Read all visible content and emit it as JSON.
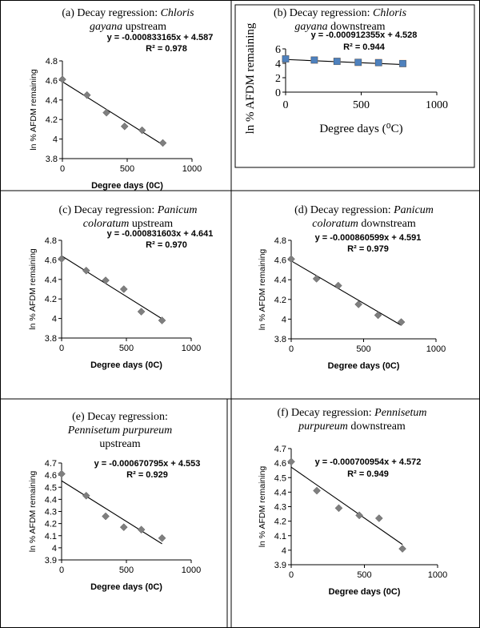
{
  "chart_data": [
    {
      "type": "scatter",
      "title_lines": [
        [
          "(a) Decay regression: ",
          "Chloris"
        ],
        [
          "gayana",
          " upstream"
        ]
      ],
      "title_style": "serif-14",
      "equation": "y = -0.000833165x + 4.587",
      "r2": "R² = 0.978",
      "xlabel": "Degree days (0C)",
      "ylabel": "ln % AFDM remaining",
      "xlim": [
        0,
        1000
      ],
      "ylim": [
        3.8,
        4.8
      ],
      "xticks": [
        0,
        500,
        1000
      ],
      "yticks": [
        "3.8",
        "4",
        "4.2",
        "4.4",
        "4.6",
        "4.8"
      ],
      "points": [
        [
          0,
          4.61
        ],
        [
          190,
          4.45
        ],
        [
          340,
          4.27
        ],
        [
          480,
          4.13
        ],
        [
          615,
          4.09
        ],
        [
          775,
          3.96
        ]
      ],
      "fit": {
        "slope": -0.000833165,
        "intercept": 4.587
      },
      "marker": "diamond",
      "marker_color": "#000000"
    },
    {
      "type": "scatter",
      "title_lines": [
        [
          "(b) Decay regression: ",
          "Chloris"
        ],
        [
          "gayana",
          " downstream"
        ]
      ],
      "title_style": "serif-14",
      "equation": "y = -0.000912355x + 4.528",
      "r2": "R² = 0.944",
      "xlabel": "Degree days (⁰C)",
      "ylabel": "ln % AFDM remaining",
      "xlim": [
        0,
        1000
      ],
      "ylim": [
        0,
        6
      ],
      "xticks": [
        0,
        500,
        1000
      ],
      "yticks": [
        "0",
        "2",
        "4",
        "6"
      ],
      "points": [
        [
          0,
          4.61
        ],
        [
          190,
          4.45
        ],
        [
          340,
          4.27
        ],
        [
          480,
          4.13
        ],
        [
          615,
          4.09
        ],
        [
          775,
          3.96
        ]
      ],
      "fit": {
        "slope": -0.000912355,
        "intercept": 4.528
      },
      "marker": "square",
      "marker_color": "#4f81bd",
      "marker_accent": "#f79646"
    },
    {
      "type": "scatter",
      "title_lines": [
        [
          "(c) Decay regression: ",
          "Panicum"
        ],
        [
          "coloratum",
          " upstream"
        ]
      ],
      "title_style": "serif-14",
      "equation": "y = -0.000831603x + 4.641",
      "r2": "R² = 0.970",
      "xlabel": "Degree days (0C)",
      "ylabel": "ln % AFDM remaining",
      "xlim": [
        0,
        1000
      ],
      "ylim": [
        3.8,
        4.8
      ],
      "xticks": [
        0,
        500,
        1000
      ],
      "yticks": [
        "3.8",
        "4",
        "4.2",
        "4.4",
        "4.6",
        "4.8"
      ],
      "points": [
        [
          0,
          4.61
        ],
        [
          190,
          4.49
        ],
        [
          340,
          4.39
        ],
        [
          480,
          4.3
        ],
        [
          615,
          4.07
        ],
        [
          775,
          3.98
        ]
      ],
      "fit": {
        "slope": -0.000831603,
        "intercept": 4.641
      },
      "marker": "diamond",
      "marker_color": "#000000"
    },
    {
      "type": "scatter",
      "title_lines": [
        [
          "(d) Decay regression: ",
          "Panicum"
        ],
        [
          "coloratum",
          " downstream"
        ]
      ],
      "title_style": "serif-14",
      "equation": "y = -0.000860599x + 4.591",
      "r2": "R² = 0.979",
      "xlabel": "Degree days (0C)",
      "ylabel": "ln % AFDM remaining",
      "xlim": [
        0,
        1000
      ],
      "ylim": [
        3.8,
        4.8
      ],
      "xticks": [
        0,
        500,
        1000
      ],
      "yticks": [
        "3.8",
        "4",
        "4.2",
        "4.4",
        "4.6",
        "4.8"
      ],
      "points": [
        [
          0,
          4.61
        ],
        [
          175,
          4.41
        ],
        [
          325,
          4.34
        ],
        [
          465,
          4.15
        ],
        [
          600,
          4.04
        ],
        [
          760,
          3.97
        ]
      ],
      "fit": {
        "slope": -0.000860599,
        "intercept": 4.591
      },
      "marker": "diamond",
      "marker_color": "#000000"
    },
    {
      "type": "scatter",
      "title_lines": [
        [
          "(e) Decay regression:"
        ],
        [
          "Pennisetum purpureum"
        ],
        [
          "upstream"
        ]
      ],
      "title_style": "serif-14",
      "equation": "y = -0.000670795x + 4.553",
      "r2": "R² = 0.929",
      "xlabel": "Degree days (0C)",
      "ylabel": "ln % AFDM remaining",
      "xlim": [
        0,
        1000
      ],
      "ylim": [
        3.9,
        4.7
      ],
      "xticks": [
        0,
        500,
        1000
      ],
      "yticks": [
        "3.9",
        "4",
        "4.1",
        "4.2",
        "4.3",
        "4.4",
        "4.5",
        "4.6",
        "4.7"
      ],
      "points": [
        [
          0,
          4.61
        ],
        [
          190,
          4.43
        ],
        [
          340,
          4.26
        ],
        [
          480,
          4.17
        ],
        [
          615,
          4.15
        ],
        [
          775,
          4.08
        ]
      ],
      "fit": {
        "slope": -0.000670795,
        "intercept": 4.553
      },
      "marker": "diamond",
      "marker_color": "#000000"
    },
    {
      "type": "scatter",
      "title_lines": [
        [
          "(f) Decay regression: ",
          "Pennisetum"
        ],
        [
          "purpureum",
          " downstream"
        ]
      ],
      "title_style": "serif-14",
      "equation": "y = -0.000700954x + 4.572",
      "r2": "R² = 0.949",
      "xlabel": "Degree days (0C)",
      "ylabel": "ln % AFDM remaining",
      "xlim": [
        0,
        1000
      ],
      "ylim": [
        3.9,
        4.7
      ],
      "xticks": [
        0,
        500,
        1000
      ],
      "yticks": [
        "3.9",
        "4",
        "4.1",
        "4.2",
        "4.3",
        "4.4",
        "4.5",
        "4.6",
        "4.7"
      ],
      "points": [
        [
          0,
          4.61
        ],
        [
          175,
          4.41
        ],
        [
          325,
          4.29
        ],
        [
          465,
          4.24
        ],
        [
          600,
          4.22
        ],
        [
          760,
          4.01
        ]
      ],
      "fit": {
        "slope": -0.000700954,
        "intercept": 4.572
      },
      "marker": "diamond",
      "marker_color": "#000000"
    }
  ]
}
